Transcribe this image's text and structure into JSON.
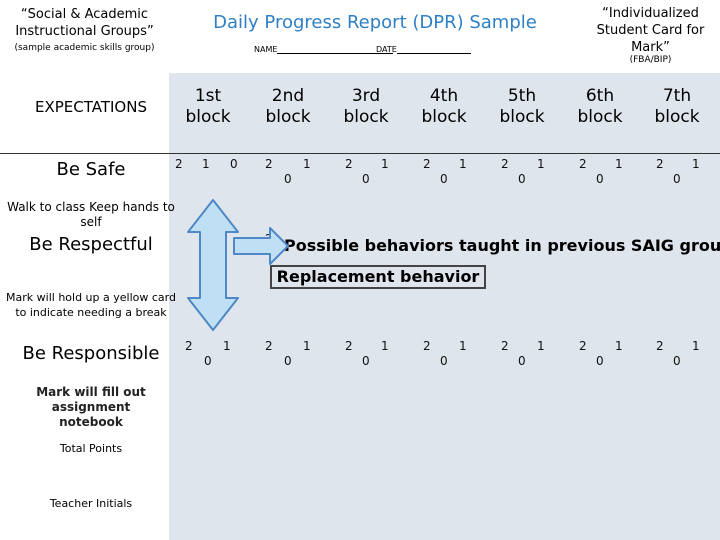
{
  "header": {
    "left_title": "“Social & Academic Instructional Groups”",
    "left_sub": "(sample academic skills group)",
    "title": "Daily Progress Report (DPR) Sample",
    "name_label": "NAME",
    "date_label": "DATE",
    "right_title": "“Individualized Student Card for Mark”",
    "right_sub": "(FBA/BIP)"
  },
  "table": {
    "expectations_header": "EXPECTATIONS",
    "blocks": [
      "1st block",
      "2nd block",
      "3rd block",
      "4th block",
      "5th block",
      "6th block",
      "7th block"
    ],
    "rows": [
      {
        "title": "Be Safe",
        "note": "Walk to class Keep hands to self"
      },
      {
        "title": "Be Respectful",
        "note": "Mark will hold up a yellow card to indicate needing a break"
      },
      {
        "title": "Be Responsible",
        "note": "Mark will fill out assignment notebook"
      }
    ],
    "total_points": "Total Points",
    "teacher_initials": "Teacher Initials",
    "score_two": "2",
    "score_one": "1",
    "score_zero": "0"
  },
  "overlay": {
    "title": "Possible behaviors taught in previous SAIG group",
    "subtitle": "Replacement behavior"
  },
  "colors": {
    "title_blue": "#2f7fc4",
    "arrow_fill": "#bfe0f4",
    "arrow_stroke": "#4f88c6",
    "panel_gray": "#dfe5ec"
  }
}
